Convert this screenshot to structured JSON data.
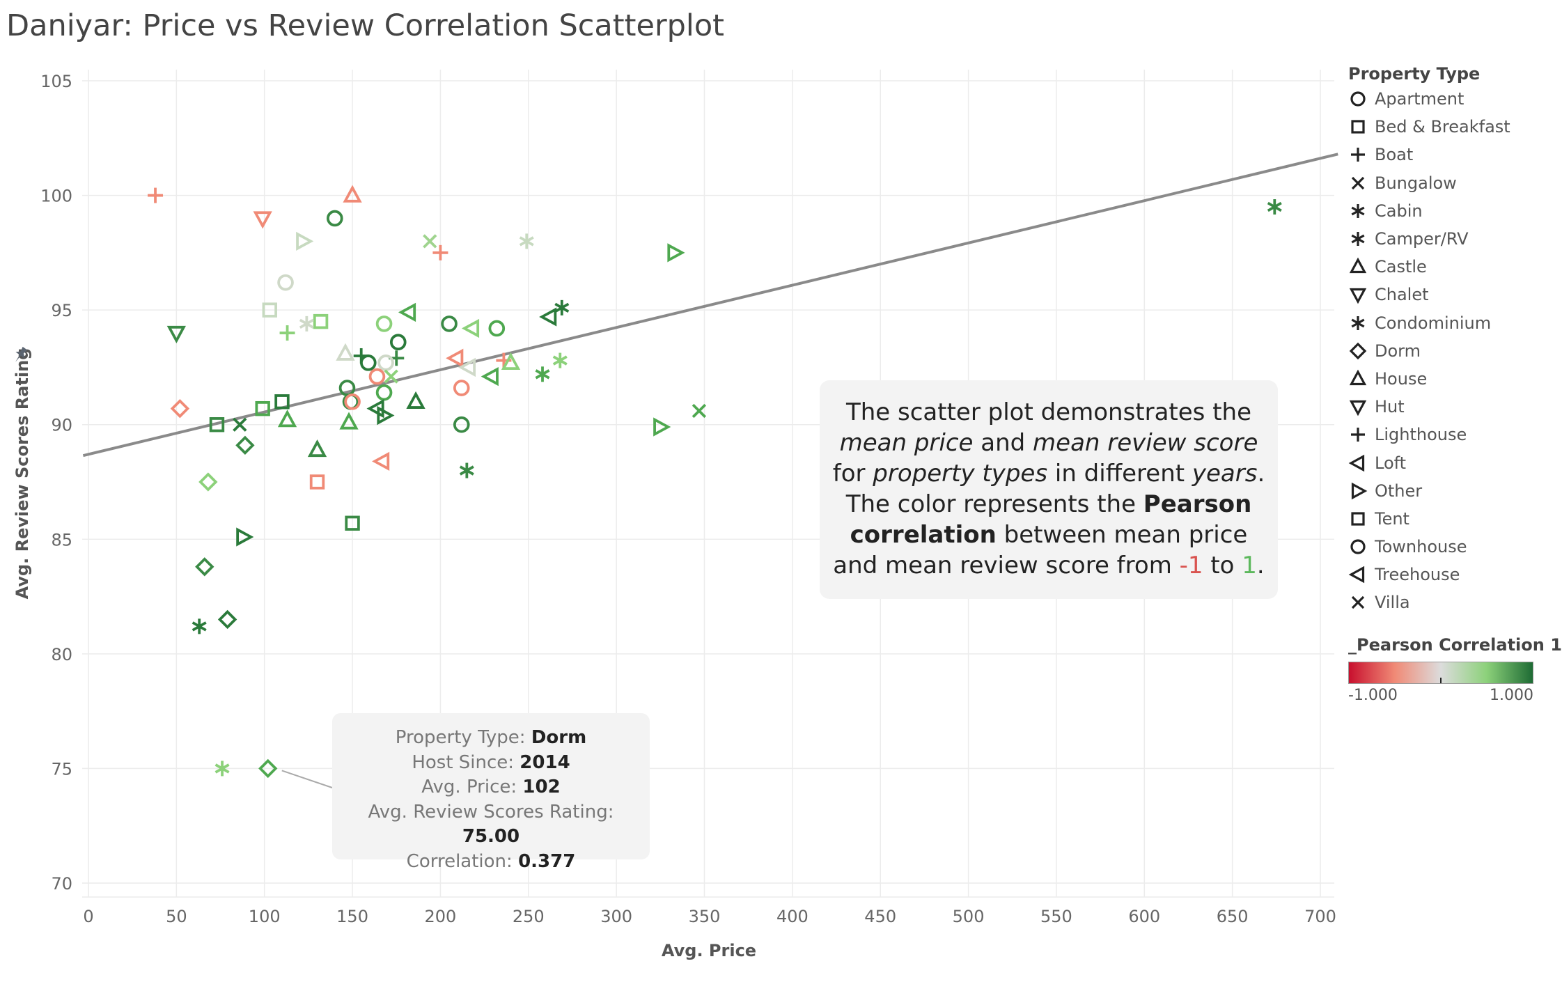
{
  "title": "Daniyar: Price vs Review Correlation Scatterplot",
  "annotation": {
    "parts": [
      {
        "text": "The scatter plot demonstrates the ",
        "style": "normal"
      },
      {
        "text": "mean price",
        "style": "italic"
      },
      {
        "text": " and ",
        "style": "normal"
      },
      {
        "text": "mean review score",
        "style": "italic"
      },
      {
        "text": " for ",
        "style": "normal"
      },
      {
        "text": "property types",
        "style": "italic"
      },
      {
        "text": " in different ",
        "style": "normal"
      },
      {
        "text": "years",
        "style": "italic"
      },
      {
        "text": ". The color represents the ",
        "style": "normal"
      },
      {
        "text": "Pearson correlation",
        "style": "bold"
      },
      {
        "text": " between mean price and mean review score from ",
        "style": "normal"
      },
      {
        "text": "-1",
        "style": "neg"
      },
      {
        "text": " to ",
        "style": "normal"
      },
      {
        "text": "1",
        "style": "pos"
      },
      {
        "text": ".",
        "style": "normal"
      }
    ]
  },
  "tooltip": {
    "rows": [
      {
        "label": "Property Type:",
        "value": "Dorm"
      },
      {
        "label": "Host Since:",
        "value": "2014"
      },
      {
        "label": "Avg. Price:",
        "value": "102"
      },
      {
        "label": "Avg. Review Scores Rating:",
        "value": "75.00"
      },
      {
        "label": "Correlation:",
        "value": "0.377"
      }
    ]
  },
  "legend": {
    "title": "Property Type",
    "items": [
      {
        "label": "Apartment",
        "shape": "circle"
      },
      {
        "label": "Bed & Breakfast",
        "shape": "square"
      },
      {
        "label": "Boat",
        "shape": "plus"
      },
      {
        "label": "Bungalow",
        "shape": "x"
      },
      {
        "label": "Cabin",
        "shape": "asterisk"
      },
      {
        "label": "Camper/RV",
        "shape": "asterisk"
      },
      {
        "label": "Castle",
        "shape": "triangle-up"
      },
      {
        "label": "Chalet",
        "shape": "triangle-down"
      },
      {
        "label": "Condominium",
        "shape": "asterisk"
      },
      {
        "label": "Dorm",
        "shape": "diamond"
      },
      {
        "label": "House",
        "shape": "triangle-up"
      },
      {
        "label": "Hut",
        "shape": "triangle-down"
      },
      {
        "label": "Lighthouse",
        "shape": "plus"
      },
      {
        "label": "Loft",
        "shape": "triangle-left"
      },
      {
        "label": "Other",
        "shape": "triangle-right"
      },
      {
        "label": "Tent",
        "shape": "square"
      },
      {
        "label": "Townhouse",
        "shape": "circle"
      },
      {
        "label": "Treehouse",
        "shape": "triangle-left"
      },
      {
        "label": "Villa",
        "shape": "x"
      }
    ]
  },
  "color_legend": {
    "title": "_Pearson Correlation 1",
    "min_label": "-1.000",
    "max_label": "1.000",
    "ramp_colors": [
      "#c8102e",
      "#f08a76",
      "#dcdcdc",
      "#8cd17a",
      "#1e6b34"
    ]
  },
  "chart_data": {
    "type": "scatter",
    "title": "Daniyar: Price vs Review Correlation Scatterplot",
    "xlabel": "Avg. Price",
    "ylabel": "Avg. Review Scores Rating",
    "xlim": [
      -3,
      710
    ],
    "ylim": [
      69.5,
      105.5
    ],
    "xticks": [
      0,
      50,
      100,
      150,
      200,
      250,
      300,
      350,
      400,
      450,
      500,
      550,
      600,
      650,
      700
    ],
    "yticks": [
      70,
      75,
      80,
      85,
      90,
      95,
      100,
      105
    ],
    "grid": true,
    "legend_position": "right",
    "trend_line": {
      "x": [
        -3,
        710
      ],
      "y": [
        88.65,
        101.8
      ]
    },
    "highlighted_point": {
      "x": 102,
      "y": 75.0
    },
    "points": [
      {
        "x": 38,
        "y": 100.0,
        "shape": "plus",
        "color": "#f08a76"
      },
      {
        "x": 150,
        "y": 100.0,
        "shape": "triangle-up",
        "color": "#f08a76"
      },
      {
        "x": 99,
        "y": 99.0,
        "shape": "triangle-down",
        "color": "#f08a76"
      },
      {
        "x": 140,
        "y": 99.0,
        "shape": "circle",
        "color": "#3a8a45"
      },
      {
        "x": 122,
        "y": 98.0,
        "shape": "triangle-right",
        "color": "#c7dac0"
      },
      {
        "x": 194,
        "y": 98.0,
        "shape": "x",
        "color": "#9fd48e"
      },
      {
        "x": 249,
        "y": 98.0,
        "shape": "asterisk",
        "color": "#c7dac0"
      },
      {
        "x": 200,
        "y": 97.5,
        "shape": "plus",
        "color": "#f08a76"
      },
      {
        "x": 333,
        "y": 97.5,
        "shape": "triangle-right",
        "color": "#4ea84f"
      },
      {
        "x": 674,
        "y": 99.5,
        "shape": "asterisk",
        "color": "#3a8a45"
      },
      {
        "x": 112,
        "y": 96.2,
        "shape": "circle",
        "color": "#cfd9c8"
      },
      {
        "x": 103,
        "y": 95.0,
        "shape": "square",
        "color": "#c7dac0"
      },
      {
        "x": 132,
        "y": 94.5,
        "shape": "square",
        "color": "#8cd17a"
      },
      {
        "x": 113,
        "y": 94.0,
        "shape": "plus",
        "color": "#8cd17a"
      },
      {
        "x": 124,
        "y": 94.4,
        "shape": "asterisk",
        "color": "#cfd9c8"
      },
      {
        "x": 168,
        "y": 94.4,
        "shape": "circle",
        "color": "#8cd17a"
      },
      {
        "x": 182,
        "y": 94.9,
        "shape": "triangle-left",
        "color": "#4ea84f"
      },
      {
        "x": 205,
        "y": 94.4,
        "shape": "circle",
        "color": "#3a8a45"
      },
      {
        "x": 218,
        "y": 94.2,
        "shape": "triangle-left",
        "color": "#8cd17a"
      },
      {
        "x": 232,
        "y": 94.2,
        "shape": "circle",
        "color": "#4ea84f"
      },
      {
        "x": 262,
        "y": 94.7,
        "shape": "triangle-left",
        "color": "#2a7a3a"
      },
      {
        "x": 269,
        "y": 95.1,
        "shape": "asterisk",
        "color": "#2a7a3a"
      },
      {
        "x": 50,
        "y": 94.0,
        "shape": "triangle-down",
        "color": "#3a8a45"
      },
      {
        "x": 146,
        "y": 93.1,
        "shape": "triangle-up",
        "color": "#cfd9c8"
      },
      {
        "x": 155,
        "y": 93.0,
        "shape": "plus",
        "color": "#2a7a3a"
      },
      {
        "x": 159,
        "y": 92.7,
        "shape": "circle",
        "color": "#2a7a3a"
      },
      {
        "x": 176,
        "y": 93.6,
        "shape": "circle",
        "color": "#2a7a3a"
      },
      {
        "x": 175,
        "y": 92.9,
        "shape": "plus",
        "color": "#3a8a45"
      },
      {
        "x": 169,
        "y": 92.7,
        "shape": "circle",
        "color": "#cfd9c8"
      },
      {
        "x": 209,
        "y": 92.9,
        "shape": "triangle-left",
        "color": "#f08a76"
      },
      {
        "x": 216,
        "y": 92.5,
        "shape": "triangle-left",
        "color": "#cfd9c8"
      },
      {
        "x": 236,
        "y": 92.8,
        "shape": "plus",
        "color": "#f08a76"
      },
      {
        "x": 240,
        "y": 92.7,
        "shape": "triangle-up",
        "color": "#8cd17a"
      },
      {
        "x": 268,
        "y": 92.8,
        "shape": "asterisk",
        "color": "#8cd17a"
      },
      {
        "x": 164,
        "y": 92.1,
        "shape": "circle",
        "color": "#f08a76"
      },
      {
        "x": 172,
        "y": 92.1,
        "shape": "x",
        "color": "#8cd17a"
      },
      {
        "x": 229,
        "y": 92.1,
        "shape": "triangle-left",
        "color": "#4ea84f"
      },
      {
        "x": 258,
        "y": 92.2,
        "shape": "asterisk",
        "color": "#4ea84f"
      },
      {
        "x": 147,
        "y": 91.6,
        "shape": "circle",
        "color": "#3a8a45"
      },
      {
        "x": 212,
        "y": 91.6,
        "shape": "circle",
        "color": "#f08a76"
      },
      {
        "x": 168,
        "y": 91.4,
        "shape": "circle",
        "color": "#4ea84f"
      },
      {
        "x": 149,
        "y": 91.0,
        "shape": "circle",
        "color": "#3a8a45"
      },
      {
        "x": 150,
        "y": 91.0,
        "shape": "circle",
        "color": "#f08a76"
      },
      {
        "x": 186,
        "y": 91.0,
        "shape": "triangle-up",
        "color": "#2a7a3a"
      },
      {
        "x": 110,
        "y": 91.0,
        "shape": "square",
        "color": "#2a7a3a"
      },
      {
        "x": 99,
        "y": 90.7,
        "shape": "square",
        "color": "#4ea84f"
      },
      {
        "x": 164,
        "y": 90.7,
        "shape": "triangle-left",
        "color": "#2a7a3a"
      },
      {
        "x": 168,
        "y": 90.4,
        "shape": "triangle-right",
        "color": "#2a7a3a"
      },
      {
        "x": 52,
        "y": 90.7,
        "shape": "diamond",
        "color": "#f08a76"
      },
      {
        "x": 73,
        "y": 90.0,
        "shape": "square",
        "color": "#3a8a45"
      },
      {
        "x": 86,
        "y": 90.0,
        "shape": "x",
        "color": "#2a7a3a"
      },
      {
        "x": 113,
        "y": 90.2,
        "shape": "triangle-up",
        "color": "#4ea84f"
      },
      {
        "x": 148,
        "y": 90.1,
        "shape": "triangle-up",
        "color": "#4ea84f"
      },
      {
        "x": 212,
        "y": 90.0,
        "shape": "circle",
        "color": "#3a8a45"
      },
      {
        "x": 325,
        "y": 89.9,
        "shape": "triangle-right",
        "color": "#4ea84f"
      },
      {
        "x": 347,
        "y": 90.6,
        "shape": "x",
        "color": "#4ea84f"
      },
      {
        "x": 89,
        "y": 89.1,
        "shape": "diamond",
        "color": "#3a8a45"
      },
      {
        "x": 130,
        "y": 88.9,
        "shape": "triangle-up",
        "color": "#3a8a45"
      },
      {
        "x": 167,
        "y": 88.4,
        "shape": "triangle-left",
        "color": "#f08a76"
      },
      {
        "x": 215,
        "y": 88.0,
        "shape": "asterisk",
        "color": "#3a8a45"
      },
      {
        "x": 68,
        "y": 87.5,
        "shape": "diamond",
        "color": "#8cd17a"
      },
      {
        "x": 130,
        "y": 87.5,
        "shape": "square",
        "color": "#f08a76"
      },
      {
        "x": 150,
        "y": 85.7,
        "shape": "square",
        "color": "#3a8a45"
      },
      {
        "x": 88,
        "y": 85.1,
        "shape": "triangle-right",
        "color": "#2a7a3a"
      },
      {
        "x": 66,
        "y": 83.8,
        "shape": "diamond",
        "color": "#3a8a45"
      },
      {
        "x": 79,
        "y": 81.5,
        "shape": "diamond",
        "color": "#2a7a3a"
      },
      {
        "x": 63,
        "y": 81.2,
        "shape": "asterisk",
        "color": "#2a7a3a"
      },
      {
        "x": 76,
        "y": 75.0,
        "shape": "asterisk",
        "color": "#8cd17a"
      },
      {
        "x": 102,
        "y": 75.0,
        "shape": "diamond",
        "color": "#4ea84f"
      }
    ]
  }
}
